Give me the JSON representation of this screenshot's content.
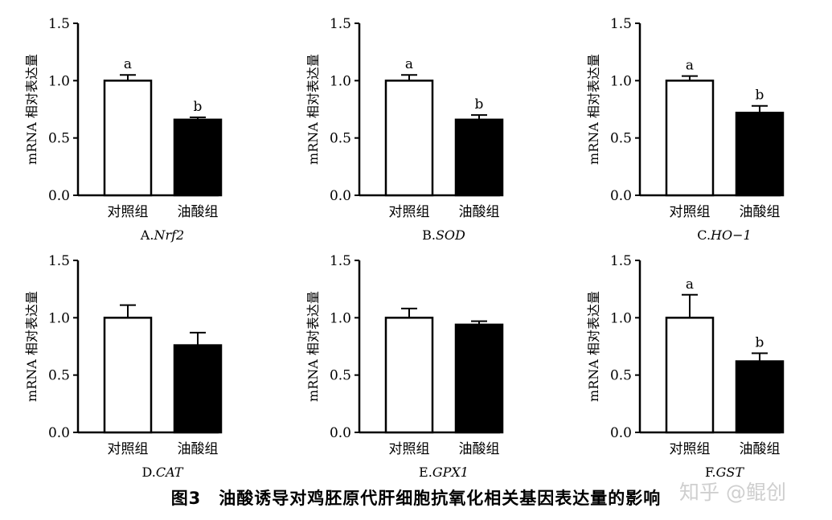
{
  "figure_caption": "图3　油酸诱导对鸡胚原代肝细胞抗氧化相关基因表达量的影响",
  "watermark": "知乎 @鲲创",
  "chart_data": [
    {
      "type": "bar",
      "panel_prefix": "A.",
      "gene": "Nrf2",
      "ylabel": "mRNA 相对表达量",
      "categories": [
        "对照组",
        "油酸组"
      ],
      "values": [
        1.0,
        0.66
      ],
      "errors": [
        0.05,
        0.02
      ],
      "significance": [
        "a",
        "b"
      ],
      "fills": [
        "#ffffff",
        "#000000"
      ],
      "ylim": [
        0,
        1.5
      ],
      "yticks": [
        "0.0",
        "0.5",
        "1.0",
        "1.5"
      ]
    },
    {
      "type": "bar",
      "panel_prefix": "B.",
      "gene": "SOD",
      "ylabel": "mRNA 相对表达量",
      "categories": [
        "对照组",
        "油酸组"
      ],
      "values": [
        1.0,
        0.66
      ],
      "errors": [
        0.05,
        0.04
      ],
      "significance": [
        "a",
        "b"
      ],
      "fills": [
        "#ffffff",
        "#000000"
      ],
      "ylim": [
        0,
        1.5
      ],
      "yticks": [
        "0.0",
        "0.5",
        "1.0",
        "1.5"
      ]
    },
    {
      "type": "bar",
      "panel_prefix": "C.",
      "gene": "HO−1",
      "ylabel": "mRNA 相对表达量",
      "categories": [
        "对照组",
        "油酸组"
      ],
      "values": [
        1.0,
        0.72
      ],
      "errors": [
        0.04,
        0.06
      ],
      "significance": [
        "a",
        "b"
      ],
      "fills": [
        "#ffffff",
        "#000000"
      ],
      "ylim": [
        0,
        1.5
      ],
      "yticks": [
        "0.0",
        "0.5",
        "1.0",
        "1.5"
      ]
    },
    {
      "type": "bar",
      "panel_prefix": "D.",
      "gene": "CAT",
      "ylabel": "mRNA 相对表达量",
      "categories": [
        "对照组",
        "油酸组"
      ],
      "values": [
        1.0,
        0.76
      ],
      "errors": [
        0.11,
        0.11
      ],
      "significance": [
        "",
        ""
      ],
      "fills": [
        "#ffffff",
        "#000000"
      ],
      "ylim": [
        0,
        1.5
      ],
      "yticks": [
        "0.0",
        "0.5",
        "1.0",
        "1.5"
      ]
    },
    {
      "type": "bar",
      "panel_prefix": "E.",
      "gene": "GPX1",
      "ylabel": "mRNA 相对表达量",
      "categories": [
        "对照组",
        "油酸组"
      ],
      "values": [
        1.0,
        0.94
      ],
      "errors": [
        0.08,
        0.03
      ],
      "significance": [
        "",
        ""
      ],
      "fills": [
        "#ffffff",
        "#000000"
      ],
      "ylim": [
        0,
        1.5
      ],
      "yticks": [
        "0.0",
        "0.5",
        "1.0",
        "1.5"
      ]
    },
    {
      "type": "bar",
      "panel_prefix": "F.",
      "gene": "GST",
      "ylabel": "mRNA 相对表达量",
      "categories": [
        "对照组",
        "油酸组"
      ],
      "values": [
        1.0,
        0.62
      ],
      "errors": [
        0.2,
        0.07
      ],
      "significance": [
        "a",
        "b"
      ],
      "fills": [
        "#ffffff",
        "#000000"
      ],
      "ylim": [
        0,
        1.5
      ],
      "yticks": [
        "0.0",
        "0.5",
        "1.0",
        "1.5"
      ]
    }
  ]
}
